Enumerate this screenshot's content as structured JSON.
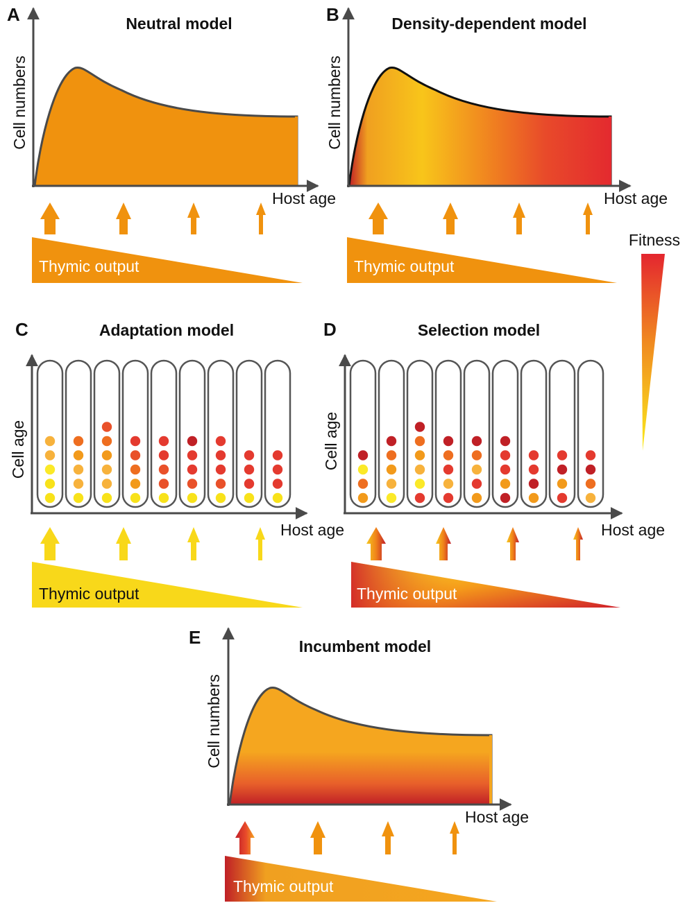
{
  "legend": {
    "label": "Fitness"
  },
  "panels": {
    "A": {
      "letter": "A",
      "title": "Neutral model",
      "ylabel": "Cell numbers",
      "xlabel": "Host age",
      "thymic_label": "Thymic output"
    },
    "B": {
      "letter": "B",
      "title": "Density-dependent model",
      "ylabel": "Cell numbers",
      "xlabel": "Host age",
      "thymic_label": "Thymic output"
    },
    "C": {
      "letter": "C",
      "title": "Adaptation model",
      "ylabel": "Cell age",
      "xlabel": "Host age",
      "thymic_label": "Thymic output",
      "columns": [
        [
          "yellow",
          "yellow",
          "lightyellow",
          "lightorange",
          "lightorange"
        ],
        [
          "yellow",
          "lightorange",
          "lightorange",
          "orange",
          "orange2"
        ],
        [
          "yellow",
          "lightorange",
          "lightorange",
          "orange",
          "orange2",
          "orange3"
        ],
        [
          "yellow",
          "orange",
          "orange2",
          "orange3",
          "red"
        ],
        [
          "yellow",
          "orange3",
          "orange3",
          "red",
          "red"
        ],
        [
          "yellow",
          "orange3",
          "red",
          "red",
          "darkred"
        ],
        [
          "yellow",
          "orange3",
          "red",
          "red",
          "red"
        ],
        [
          "yellow",
          "red",
          "red",
          "red"
        ],
        [
          "yellow",
          "red",
          "red",
          "red"
        ]
      ]
    },
    "D": {
      "letter": "D",
      "title": "Selection model",
      "ylabel": "Cell age",
      "xlabel": "Host age",
      "thymic_label": "Thymic output",
      "columns": [
        [
          "orange",
          "orange2",
          "lightyellow",
          "darkred"
        ],
        [
          "lightyellow",
          "lightorange",
          "orange",
          "orange2",
          "darkred"
        ],
        [
          "red",
          "lightyellow",
          "lightorange",
          "orange",
          "orange2",
          "darkred"
        ],
        [
          "red",
          "lightorange",
          "red",
          "orange2",
          "darkred"
        ],
        [
          "orange",
          "red",
          "lightorange",
          "orange2",
          "darkred"
        ],
        [
          "darkred",
          "orange",
          "red",
          "red",
          "darkred"
        ],
        [
          "orange",
          "darkred",
          "red",
          "red"
        ],
        [
          "red",
          "orange",
          "darkred",
          "red"
        ],
        [
          "lightorange",
          "orange2",
          "darkred",
          "red"
        ]
      ]
    },
    "E": {
      "letter": "E",
      "title": "Incumbent model",
      "ylabel": "Cell numbers",
      "xlabel": "Host age",
      "thymic_label": "Thymic output"
    }
  },
  "colors": {
    "yellow": "#f8e21a",
    "lightyellow": "#fbe928",
    "lightorange": "#f7b23c",
    "orange": "#f29a1b",
    "orange2": "#ee6e20",
    "orange3": "#e9512a",
    "red": "#e43a2f",
    "darkred": "#c02026",
    "neutral_fill": "#f0920e",
    "incumbent_fill": "#f5a61f",
    "axis": "#4a4a4a"
  }
}
